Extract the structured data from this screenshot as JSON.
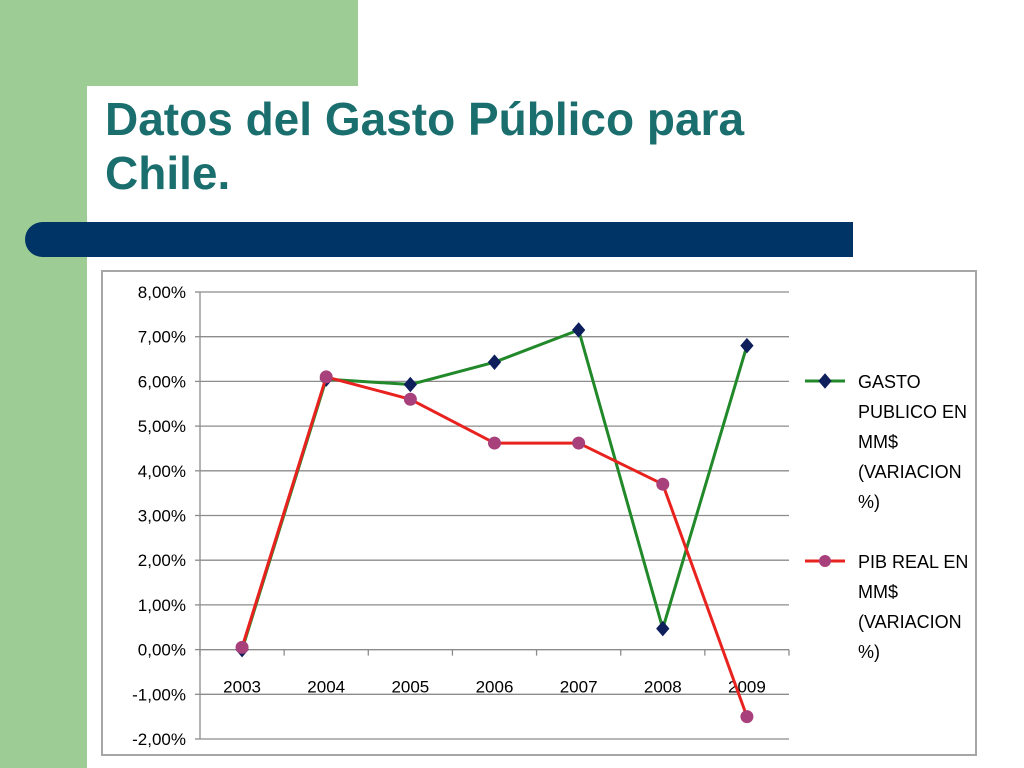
{
  "slide": {
    "title": "Datos del Gasto Público para Chile.",
    "colors": {
      "sidebar": "#9dcc94",
      "title": "#1a6f6e",
      "bar": "#003366"
    }
  },
  "chart_data": {
    "type": "line",
    "categories": [
      "2003",
      "2004",
      "2005",
      "2006",
      "2007",
      "2008",
      "2009"
    ],
    "y_ticks": [
      "8,00%",
      "7,00%",
      "6,00%",
      "5,00%",
      "4,00%",
      "3,00%",
      "2,00%",
      "1,00%",
      "0,00%",
      "-1,00%",
      "-2,00%"
    ],
    "ylim": [
      -2,
      8
    ],
    "grid": true,
    "legend_position": "right",
    "series": [
      {
        "name": "GASTO PUBLICO EN MM$ (VARIACION %)",
        "color": "#22892a",
        "marker": "diamond",
        "values": [
          0.0,
          6.05,
          5.93,
          6.43,
          7.15,
          0.47,
          6.8
        ]
      },
      {
        "name": "PIB REAL EN MM$ (VARIACION %)",
        "color": "#e8231f",
        "marker": "circle",
        "values": [
          0.05,
          6.1,
          5.6,
          4.62,
          4.62,
          3.7,
          -1.5
        ]
      }
    ]
  }
}
